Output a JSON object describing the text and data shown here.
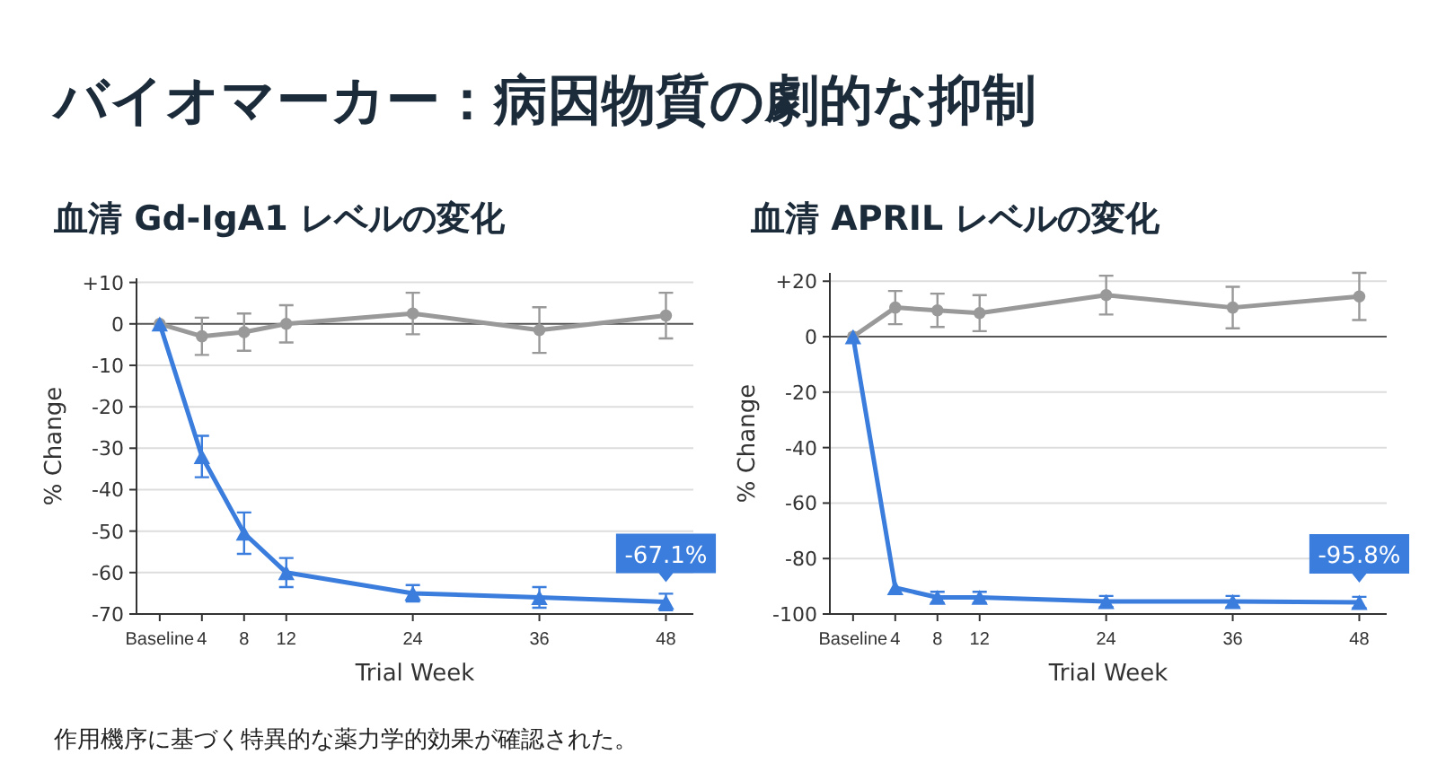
{
  "chart_data": [
    {
      "type": "line",
      "title": "バイオマーカー：病因物質の劇的な抑制",
      "subtitle": "血清 Gd-IgA1 レベルの変化",
      "xlabel": "Trial Week",
      "ylabel": "% Change",
      "x": [
        0,
        4,
        8,
        12,
        24,
        36,
        48
      ],
      "xlim": [
        -2.2,
        50.6
      ],
      "xticks": [
        {
          "value": 0,
          "label": "Baseline"
        },
        4,
        8,
        12,
        24,
        36,
        48
      ],
      "ylim": [
        -70,
        11
      ],
      "yticks": [
        {
          "value": 10,
          "label": "+10"
        },
        0,
        -10,
        -20,
        -30,
        -40,
        -50,
        -60,
        -70
      ],
      "grid": "y",
      "annotations": [
        "作用機序に基づく特異的な薬力学的効果が確認された。"
      ],
      "series": [
        {
          "color": "#999999",
          "marker": "circle",
          "values": [
            0,
            -3,
            -2,
            0,
            2.5,
            -1.5,
            2
          ],
          "errors": [
            null,
            4.5,
            4.5,
            4.5,
            5,
            5.5,
            5.5
          ]
        },
        {
          "color": "#3b7ddd",
          "marker": "triangle",
          "values": [
            0,
            -32,
            -50.5,
            -60,
            -65,
            -66,
            -67.1
          ],
          "errors": [
            null,
            5,
            5,
            3.5,
            2,
            2.5,
            2
          ],
          "value_labels": [
            null,
            null,
            null,
            null,
            null,
            null,
            "-67.1%"
          ]
        }
      ]
    },
    {
      "type": "line",
      "subtitle": "血清 APRIL レベルの変化",
      "xlabel": "Trial Week",
      "ylabel": "% Change",
      "x": [
        0,
        4,
        8,
        12,
        24,
        36,
        48
      ],
      "xlim": [
        -2.2,
        50.6
      ],
      "xticks": [
        {
          "value": 0,
          "label": "Baseline"
        },
        4,
        8,
        12,
        24,
        36,
        48
      ],
      "ylim": [
        -100,
        23
      ],
      "yticks": [
        {
          "value": 20,
          "label": "+20"
        },
        0,
        -20,
        -40,
        -60,
        -80,
        -100
      ],
      "grid": "y",
      "series": [
        {
          "color": "#999999",
          "marker": "circle",
          "values": [
            0,
            10.5,
            9.5,
            8.5,
            15,
            10.5,
            14.5
          ],
          "errors": [
            null,
            6,
            6,
            6.5,
            7,
            7.5,
            8.5
          ]
        },
        {
          "color": "#3b7ddd",
          "marker": "triangle",
          "values": [
            0,
            -90.5,
            -94,
            -94,
            -95.5,
            -95.5,
            -95.8
          ],
          "errors": [
            null,
            null,
            2,
            2,
            2,
            2,
            2
          ],
          "value_labels": [
            null,
            null,
            null,
            null,
            null,
            null,
            "-95.8%"
          ]
        }
      ]
    }
  ]
}
